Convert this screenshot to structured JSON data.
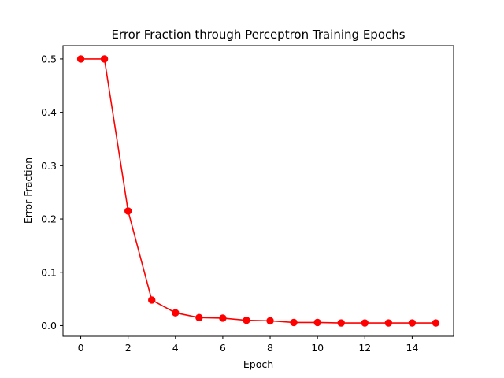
{
  "chart_data": {
    "type": "line",
    "title": "Error Fraction through Perceptron Training Epochs",
    "xlabel": "Epoch",
    "ylabel": "Error Fraction",
    "xlim": [
      -0.75,
      15.75
    ],
    "ylim": [
      -0.02,
      0.525
    ],
    "x_ticks": [
      0,
      2,
      4,
      6,
      8,
      10,
      12,
      14
    ],
    "y_ticks": [
      0.0,
      0.1,
      0.2,
      0.3,
      0.4,
      0.5
    ],
    "y_tick_labels": [
      "0.0",
      "0.1",
      "0.2",
      "0.3",
      "0.4",
      "0.5"
    ],
    "grid": false,
    "series": [
      {
        "color": "#ff0000",
        "marker": "circle",
        "x": [
          0,
          1,
          2,
          3,
          4,
          5,
          6,
          7,
          8,
          9,
          10,
          11,
          12,
          13,
          14,
          15
        ],
        "y": [
          0.5,
          0.5,
          0.215,
          0.048,
          0.024,
          0.015,
          0.014,
          0.01,
          0.009,
          0.006,
          0.006,
          0.005,
          0.005,
          0.005,
          0.005,
          0.005
        ]
      }
    ]
  }
}
